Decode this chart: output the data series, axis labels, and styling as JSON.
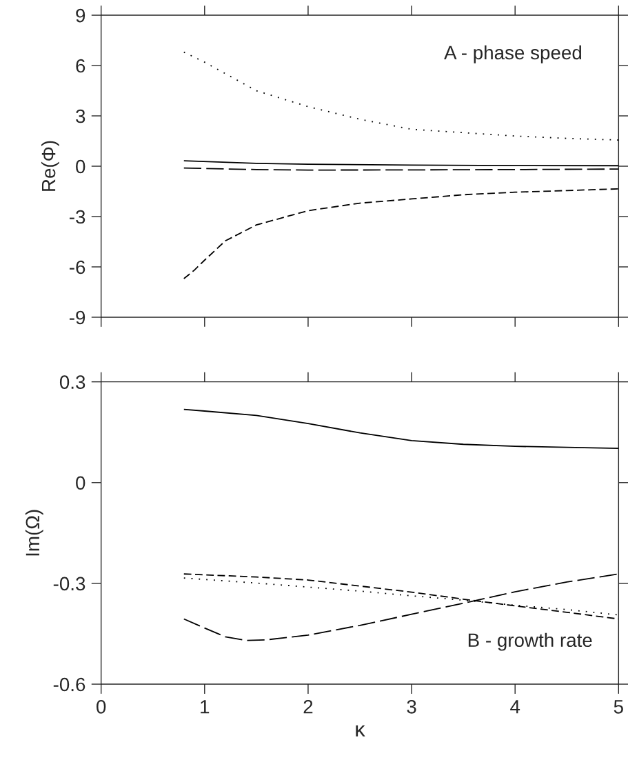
{
  "chart_data": [
    {
      "type": "line",
      "ylabel": "Re(Φ)",
      "annotations": [
        "A - phase speed"
      ],
      "xlim": [
        0,
        5
      ],
      "xticks": [
        0,
        1,
        2,
        3,
        4,
        5
      ],
      "ylim": [
        -9,
        9
      ],
      "yticks": [
        9,
        6,
        3,
        0,
        -3,
        -6,
        -9
      ],
      "tick_labels": "y",
      "grid": false,
      "legend": false,
      "series": [
        {
          "color": "#000000",
          "line_style": "dotted",
          "x": [
            0.8,
            1,
            1.5,
            2,
            2.5,
            3,
            3.5,
            4,
            4.5,
            5
          ],
          "values": [
            6.8,
            6.2,
            4.5,
            3.55,
            2.8,
            2.2,
            2.0,
            1.8,
            1.66,
            1.56
          ]
        },
        {
          "color": "#000000",
          "line_style": "solid",
          "x": [
            0.8,
            1.5,
            2,
            3,
            4,
            5
          ],
          "values": [
            0.32,
            0.17,
            0.12,
            0.07,
            0.04,
            0.03
          ]
        },
        {
          "color": "#000000",
          "line_style": "long_dashed",
          "x": [
            0.8,
            1.5,
            2,
            3,
            4,
            5
          ],
          "values": [
            -0.11,
            -0.2,
            -0.23,
            -0.22,
            -0.2,
            -0.17
          ]
        },
        {
          "color": "#000000",
          "line_style": "dashed",
          "x": [
            0.8,
            0.9,
            1,
            1.2,
            1.5,
            2,
            2.5,
            3,
            3.5,
            4,
            4.5,
            5
          ],
          "values": [
            -6.7,
            -6.2,
            -5.6,
            -4.45,
            -3.5,
            -2.65,
            -2.2,
            -1.95,
            -1.7,
            -1.55,
            -1.45,
            -1.35
          ]
        }
      ]
    },
    {
      "type": "line",
      "xlabel": "κ",
      "ylabel": "Im(Ω)",
      "annotations": [
        "B - growth rate"
      ],
      "xlim": [
        0,
        5
      ],
      "xticks": [
        0,
        1,
        2,
        3,
        4,
        5
      ],
      "ylim": [
        -0.6,
        0.3
      ],
      "yticks": [
        0.3,
        0,
        -0.3,
        -0.6
      ],
      "grid": false,
      "legend": false,
      "series": [
        {
          "color": "#000000",
          "line_style": "solid",
          "x": [
            0.8,
            1,
            1.5,
            2,
            2.5,
            3,
            3.5,
            4,
            4.5,
            5
          ],
          "values": [
            0.218,
            0.213,
            0.2,
            0.176,
            0.148,
            0.125,
            0.114,
            0.108,
            0.105,
            0.102
          ]
        },
        {
          "color": "#000000",
          "line_style": "dashed",
          "x": [
            0.8,
            1.5,
            2,
            2.5,
            3,
            3.5,
            4,
            4.5,
            5
          ],
          "values": [
            -0.272,
            -0.281,
            -0.29,
            -0.308,
            -0.326,
            -0.347,
            -0.367,
            -0.386,
            -0.406
          ]
        },
        {
          "color": "#000000",
          "line_style": "dotted",
          "x": [
            0.8,
            1.5,
            2,
            2.5,
            3,
            3.5,
            4,
            4.5,
            5
          ],
          "values": [
            -0.284,
            -0.299,
            -0.311,
            -0.323,
            -0.337,
            -0.35,
            -0.365,
            -0.378,
            -0.394
          ]
        },
        {
          "color": "#000000",
          "line_style": "long_dashed",
          "x": [
            0.8,
            1,
            1.2,
            1.4,
            1.6,
            2,
            2.5,
            3,
            3.5,
            4,
            4.5,
            5
          ],
          "values": [
            -0.406,
            -0.433,
            -0.459,
            -0.47,
            -0.468,
            -0.454,
            -0.425,
            -0.392,
            -0.359,
            -0.325,
            -0.296,
            -0.272
          ]
        }
      ]
    }
  ]
}
